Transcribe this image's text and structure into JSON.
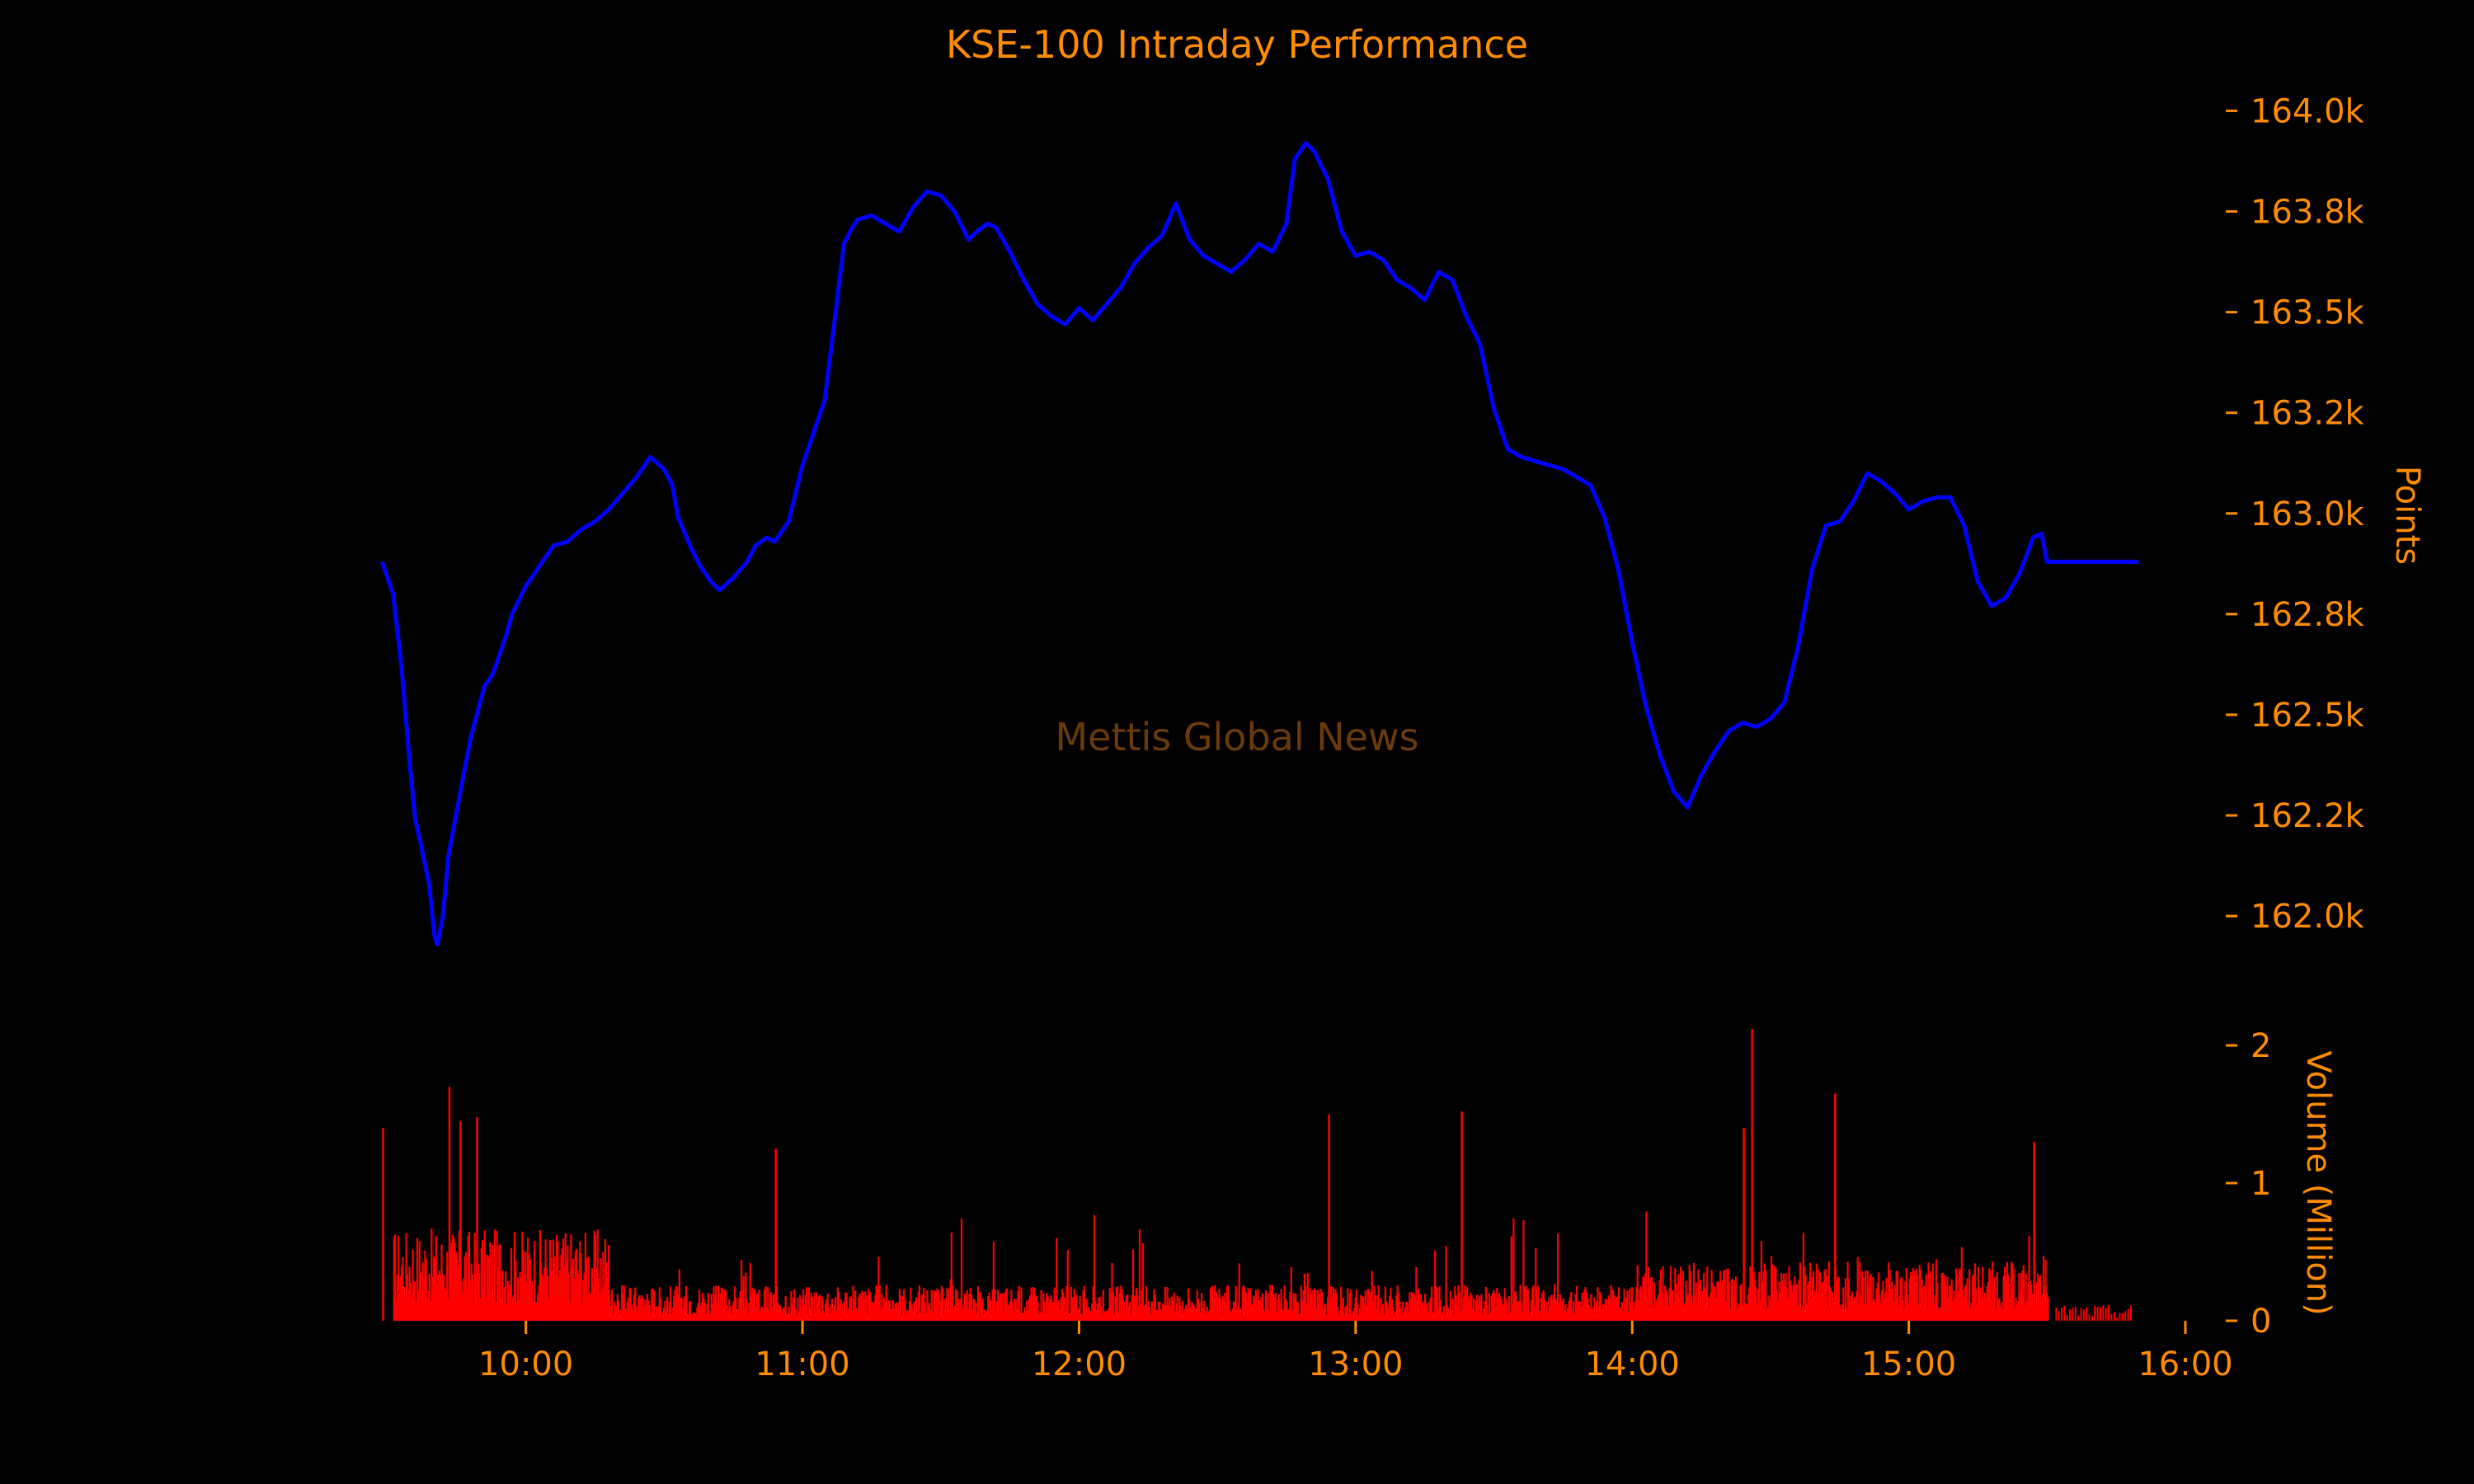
{
  "chart_data": {
    "type": "line",
    "title": "KSE-100 Intraday Performance",
    "watermark": "Mettis Global News",
    "colors": {
      "background": "#000000",
      "text": "#ff8c00",
      "line": "#0000ff",
      "volume": "#ff0000",
      "watermark": "#6b3a0c"
    },
    "x_axis": {
      "tick_labels": [
        "10:00",
        "11:00",
        "12:00",
        "13:00",
        "14:00",
        "15:00",
        "16:00"
      ],
      "tick_hours": [
        10,
        11,
        12,
        13,
        14,
        15,
        16
      ],
      "range_hours": [
        9.5,
        16
      ]
    },
    "price_panel": {
      "ylabel": "Points",
      "ylim": [
        161900,
        164050
      ],
      "ytick_values": [
        162000,
        162250,
        162500,
        162750,
        163000,
        163250,
        163500,
        163750,
        164000
      ],
      "ytick_labels": [
        "162.0k",
        "162.2k",
        "162.5k",
        "162.8k",
        "163.0k",
        "163.2k",
        "163.5k",
        "163.8k",
        "164.0k"
      ],
      "series": [
        {
          "x": [
            9.48,
            9.5,
            9.52,
            9.55,
            9.58,
            9.6,
            9.62,
            9.65,
            9.67,
            9.68,
            9.7,
            9.72,
            9.75,
            9.78,
            9.8,
            9.83,
            9.85,
            9.88,
            9.9,
            9.93,
            9.95,
            10.0,
            10.03,
            10.07,
            10.1,
            10.15,
            10.2,
            10.25,
            10.3,
            10.35,
            10.4,
            10.45,
            10.5,
            10.53,
            10.55,
            10.6,
            10.63,
            10.67,
            10.7,
            10.75,
            10.8,
            10.83,
            10.87,
            10.9,
            10.95,
            11.0,
            11.05,
            11.08,
            11.12,
            11.15,
            11.18,
            11.2,
            11.25,
            11.3,
            11.35,
            11.4,
            11.45,
            11.5,
            11.55,
            11.6,
            11.63,
            11.67,
            11.7,
            11.75,
            11.8,
            11.85,
            11.9,
            11.95,
            12.0,
            12.05,
            12.1,
            12.15,
            12.2,
            12.25,
            12.3,
            12.35,
            12.4,
            12.45,
            12.5,
            12.55,
            12.6,
            12.65,
            12.7,
            12.75,
            12.78,
            12.82,
            12.85,
            12.9,
            12.95,
            13.0,
            13.05,
            13.1,
            13.15,
            13.2,
            13.25,
            13.3,
            13.35,
            13.4,
            13.45,
            13.5,
            13.55,
            13.6,
            13.65,
            13.7,
            13.75,
            13.8,
            13.85,
            13.9,
            13.95,
            14.0,
            14.05,
            14.1,
            14.15,
            14.2,
            14.25,
            14.3,
            14.35,
            14.4,
            14.45,
            14.5,
            14.55,
            14.6,
            14.65,
            14.7,
            14.75,
            14.8,
            14.85,
            14.9,
            14.95,
            15.0,
            15.05,
            15.1,
            15.15,
            15.2,
            15.25,
            15.3,
            15.35,
            15.4,
            15.45,
            15.48,
            15.5,
            15.55,
            15.6,
            15.7,
            15.8,
            15.83
          ],
          "y": [
            162880,
            162840,
            162800,
            162620,
            162380,
            162240,
            162180,
            162080,
            161950,
            161930,
            162000,
            162150,
            162260,
            162370,
            162440,
            162520,
            162570,
            162600,
            162640,
            162700,
            162750,
            162820,
            162850,
            162890,
            162920,
            162930,
            162960,
            162980,
            163010,
            163050,
            163090,
            163140,
            163110,
            163070,
            162990,
            162910,
            162870,
            162830,
            162810,
            162840,
            162880,
            162920,
            162940,
            162930,
            162980,
            163120,
            163220,
            163280,
            163500,
            163670,
            163710,
            163730,
            163740,
            163720,
            163700,
            163760,
            163800,
            163790,
            163750,
            163680,
            163700,
            163720,
            163710,
            163650,
            163580,
            163520,
            163490,
            163470,
            163510,
            163480,
            163520,
            163560,
            163620,
            163660,
            163690,
            163770,
            163680,
            163640,
            163620,
            163600,
            163630,
            163670,
            163650,
            163720,
            163880,
            163920,
            163900,
            163830,
            163700,
            163640,
            163650,
            163630,
            163580,
            163560,
            163530,
            163600,
            163580,
            163490,
            163420,
            163260,
            163160,
            163140,
            163130,
            163120,
            163110,
            163090,
            163070,
            162990,
            162860,
            162680,
            162520,
            162400,
            162310,
            162270,
            162350,
            162410,
            162460,
            162480,
            162470,
            162490,
            162530,
            162670,
            162860,
            162970,
            162980,
            163030,
            163100,
            163080,
            163050,
            163010,
            163030,
            163040,
            163040,
            162970,
            162830,
            162770,
            162790,
            162850,
            162940,
            162950,
            162880,
            162880,
            162880,
            162880,
            162880,
            162880
          ]
        }
      ]
    },
    "volume_panel": {
      "ylabel": "Volume (Million)",
      "ylim": [
        0,
        2
      ],
      "ytick_values": [
        0,
        1,
        2
      ],
      "ytick_labels": [
        "0",
        "1",
        "2"
      ]
    }
  }
}
